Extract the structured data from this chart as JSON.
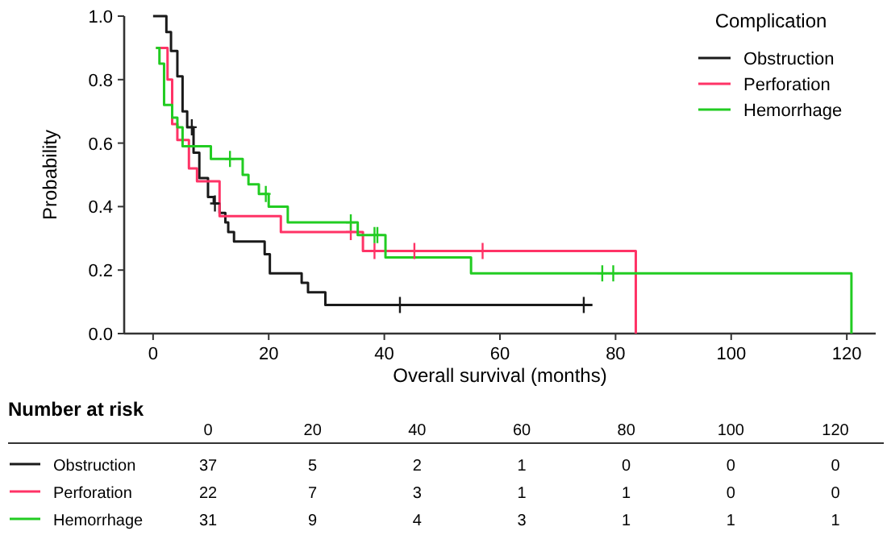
{
  "chart_data": [
    {
      "type": "step",
      "xlabel": "Overall survival (months)",
      "ylabel": "Probability",
      "legend_title": "Complication",
      "legend": "top right",
      "xlim": [
        -5,
        125
      ],
      "xticks": [
        0,
        20,
        40,
        60,
        80,
        100,
        120
      ],
      "ylim": [
        0,
        1
      ],
      "yticks": [
        {
          "value": 0,
          "label": "0.0"
        },
        {
          "value": 0.2,
          "label": "0.2"
        },
        {
          "value": 0.4,
          "label": "0.4"
        },
        {
          "value": 0.6,
          "label": "0.6"
        },
        {
          "value": 0.8,
          "label": "0.8"
        },
        {
          "value": 1,
          "label": "1.0"
        }
      ],
      "series": [
        {
          "name": "Obstruction",
          "color": "#1a1a1a",
          "x": [
            0,
            2.3,
            3.1,
            4.2,
            5.1,
            5.9,
            7,
            8,
            9.5,
            10.5,
            11.5,
            12.5,
            13,
            14,
            19.3,
            20.2,
            25.7,
            26.8,
            29.8,
            76
          ],
          "values": [
            1,
            0.95,
            0.89,
            0.81,
            0.7,
            0.65,
            0.57,
            0.49,
            0.43,
            0.41,
            0.38,
            0.35,
            0.32,
            0.29,
            0.25,
            0.19,
            0.16,
            0.13,
            0.09,
            0.09
          ]
        },
        {
          "name": "Perforation",
          "color": "#ff3366",
          "x": [
            0.5,
            2.5,
            3.3,
            4.2,
            6.2,
            7.6,
            11.5,
            22.1,
            36.3,
            83.5
          ],
          "values": [
            0.9,
            0.8,
            0.66,
            0.61,
            0.52,
            0.48,
            0.37,
            0.32,
            0.26,
            0
          ]
        },
        {
          "name": "Hemorrhage",
          "color": "#22cc22",
          "x": [
            0.5,
            1.1,
            1.9,
            3.3,
            4.2,
            5.1,
            10,
            15.5,
            16.5,
            18.3,
            20,
            23.3,
            35.4,
            40.2,
            55,
            120.8
          ],
          "values": [
            0.9,
            0.85,
            0.72,
            0.68,
            0.65,
            0.59,
            0.55,
            0.5,
            0.47,
            0.44,
            0.4,
            0.35,
            0.31,
            0.24,
            0.19,
            0
          ]
        },
        {
          "type": "scatter",
          "marker": "cross",
          "color": "#1a1a1a",
          "x": [
            6.7,
            10.7,
            42.7,
            74.5
          ],
          "values": [
            0.65,
            0.41,
            0.09,
            0.09
          ]
        },
        {
          "type": "scatter",
          "marker": "cross",
          "color": "#ff3366",
          "x": [
            34.2,
            38.3,
            45.2,
            57
          ],
          "values": [
            0.32,
            0.26,
            0.26,
            0.26
          ]
        },
        {
          "type": "scatter",
          "marker": "cross",
          "color": "#22cc22",
          "x": [
            13.3,
            19.5,
            34.2,
            38.3,
            38.8,
            77.7,
            79.6
          ],
          "values": [
            0.55,
            0.44,
            0.35,
            0.31,
            0.31,
            0.19,
            0.19
          ]
        }
      ]
    },
    {
      "type": "heatmap",
      "title": "Number at risk",
      "data_labels": true,
      "categories": [
        "0",
        "20",
        "40",
        "60",
        "80",
        "100",
        "120"
      ],
      "y_categories": [
        "Obstruction",
        "Perforation",
        "Hemorrhage"
      ],
      "cells": [
        [
          37,
          5,
          2,
          1,
          0,
          0,
          0
        ],
        [
          22,
          7,
          3,
          1,
          1,
          0,
          0
        ],
        [
          31,
          9,
          4,
          3,
          1,
          1,
          1
        ]
      ]
    }
  ]
}
